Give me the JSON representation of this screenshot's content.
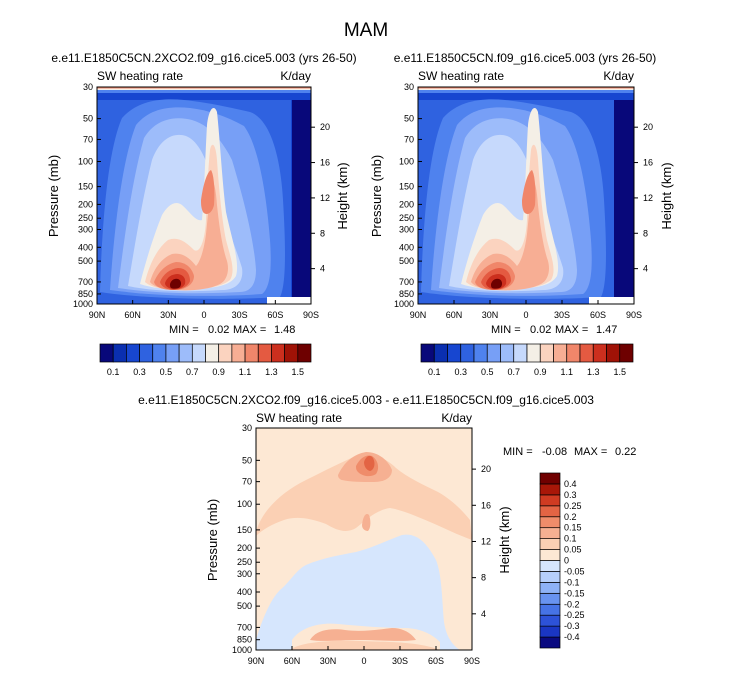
{
  "page_title": "MAM",
  "chart_data": [
    {
      "type": "heatmap",
      "title": "e.e11.E1850C5CN.2XCO2.f09_g16.cice5.003 (yrs 26-50)",
      "left_string": "SW heating rate",
      "right_string": "K/day",
      "ylabel": "Pressure (mb)",
      "ylabel_right": "Height (km)",
      "x_ticks": [
        "90N",
        "60N",
        "30N",
        "0",
        "30S",
        "60S",
        "90S"
      ],
      "y_ticks": [
        "30",
        "50",
        "70",
        "100",
        "150",
        "200",
        "250",
        "300",
        "400",
        "500",
        "700",
        "850",
        "1000"
      ],
      "y_right_ticks": [
        "20",
        "16",
        "12",
        "8",
        "4"
      ],
      "min_label": "MIN =",
      "min_value": "0.02",
      "max_label": "MAX =",
      "max_value": "1.48",
      "color_levels": [
        0.1,
        0.2,
        0.3,
        0.4,
        0.5,
        0.6,
        0.7,
        0.8,
        0.9,
        1.0,
        1.1,
        1.2,
        1.3,
        1.4,
        1.5
      ],
      "colorbar_labels": [
        "0.1",
        "0.3",
        "0.5",
        "0.7",
        "0.9",
        "1.1",
        "1.3",
        "1.5"
      ]
    },
    {
      "type": "heatmap",
      "title": "e.e11.E1850C5CN.f09_g16.cice5.003 (yrs 26-50)",
      "left_string": "SW heating rate",
      "right_string": "K/day",
      "ylabel": "Pressure (mb)",
      "ylabel_right": "Height (km)",
      "x_ticks": [
        "90N",
        "60N",
        "30N",
        "0",
        "30S",
        "60S",
        "90S"
      ],
      "y_ticks": [
        "30",
        "50",
        "70",
        "100",
        "150",
        "200",
        "250",
        "300",
        "400",
        "500",
        "700",
        "850",
        "1000"
      ],
      "y_right_ticks": [
        "20",
        "16",
        "12",
        "8",
        "4"
      ],
      "min_label": "MIN =",
      "min_value": "0.02",
      "max_label": "MAX =",
      "max_value": "1.47",
      "color_levels": [
        0.1,
        0.2,
        0.3,
        0.4,
        0.5,
        0.6,
        0.7,
        0.8,
        0.9,
        1.0,
        1.1,
        1.2,
        1.3,
        1.4,
        1.5
      ],
      "colorbar_labels": [
        "0.1",
        "0.3",
        "0.5",
        "0.7",
        "0.9",
        "1.1",
        "1.3",
        "1.5"
      ]
    },
    {
      "type": "heatmap",
      "title": "e.e11.E1850C5CN.2XCO2.f09_g16.cice5.003 - e.e11.E1850C5CN.f09_g16.cice5.003",
      "left_string": "SW heating rate",
      "right_string": "K/day",
      "ylabel": "Pressure (mb)",
      "ylabel_right": "Height (km)",
      "x_ticks": [
        "90N",
        "60N",
        "30N",
        "0",
        "30S",
        "60S",
        "90S"
      ],
      "y_ticks": [
        "30",
        "50",
        "70",
        "100",
        "150",
        "200",
        "250",
        "300",
        "400",
        "500",
        "700",
        "850",
        "1000"
      ],
      "y_right_ticks": [
        "20",
        "16",
        "12",
        "8",
        "4"
      ],
      "min_label": "MIN =",
      "min_value": "-0.08",
      "max_label": "MAX =",
      "max_value": "0.22",
      "color_levels": [
        -0.4,
        -0.3,
        -0.25,
        -0.2,
        -0.15,
        -0.1,
        -0.05,
        0,
        0.05,
        0.1,
        0.15,
        0.2,
        0.25,
        0.3,
        0.4
      ],
      "colorbar_labels": [
        "0.4",
        "0.3",
        "0.25",
        "0.2",
        "0.15",
        "0.1",
        "0.05",
        "0",
        "-0.05",
        "-0.1",
        "-0.15",
        "-0.2",
        "-0.25",
        "-0.3",
        "-0.4"
      ]
    }
  ],
  "colors": {
    "seq": [
      "#08087a",
      "#0a2fb0",
      "#1746d0",
      "#2f62e0",
      "#4f82ee",
      "#779ff6",
      "#9dbcfa",
      "#c6d9fc",
      "#f4efe6",
      "#fbd3bf",
      "#f7ae94",
      "#f0866a",
      "#e45a41",
      "#cc2f1e",
      "#a01206",
      "#6e0000"
    ],
    "diff": [
      "#0a0a80",
      "#1a36c4",
      "#2d52d8",
      "#4673e6",
      "#6893f0",
      "#8eb2f6",
      "#b6cffa",
      "#d6e6fd",
      "#fde8d4",
      "#fbd0b4",
      "#f6b092",
      "#ef8c6a",
      "#e36444",
      "#cf3b22",
      "#a81708",
      "#700000"
    ]
  }
}
